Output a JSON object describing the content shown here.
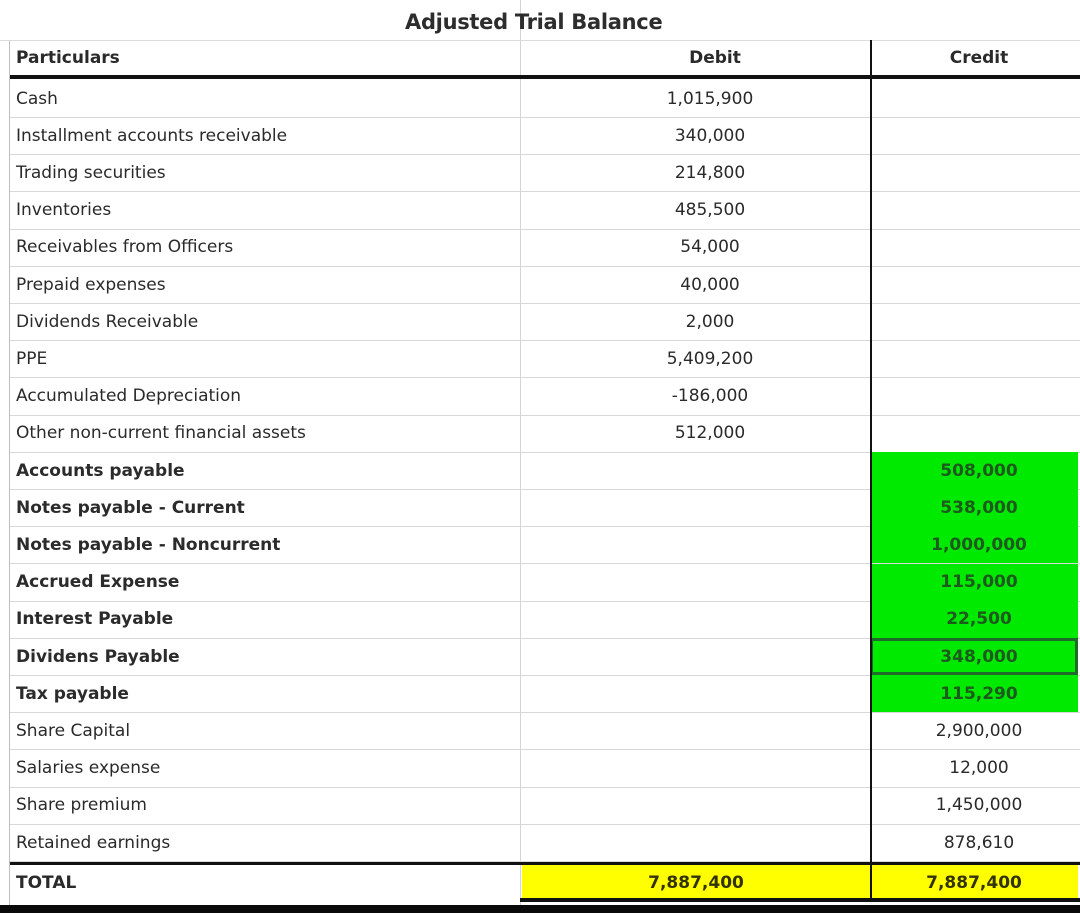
{
  "title": "Adjusted Trial Balance",
  "columns": {
    "particulars": "Particulars",
    "debit": "Debit",
    "credit": "Credit"
  },
  "rows": [
    {
      "particulars": "Cash",
      "debit": "1,015,900",
      "credit": "",
      "bold": false,
      "highlight": ""
    },
    {
      "particulars": "Installment accounts receivable",
      "debit": "340,000",
      "credit": "",
      "bold": false,
      "highlight": ""
    },
    {
      "particulars": "Trading securities",
      "debit": "214,800",
      "credit": "",
      "bold": false,
      "highlight": ""
    },
    {
      "particulars": "Inventories",
      "debit": "485,500",
      "credit": "",
      "bold": false,
      "highlight": ""
    },
    {
      "particulars": "Receivables from Officers",
      "debit": "54,000",
      "credit": "",
      "bold": false,
      "highlight": ""
    },
    {
      "particulars": "Prepaid expenses",
      "debit": "40,000",
      "credit": "",
      "bold": false,
      "highlight": ""
    },
    {
      "particulars": "Dividends Receivable",
      "debit": "2,000",
      "credit": "",
      "bold": false,
      "highlight": ""
    },
    {
      "particulars": "PPE",
      "debit": "5,409,200",
      "credit": "",
      "bold": false,
      "highlight": ""
    },
    {
      "particulars": "Accumulated Depreciation",
      "debit": "-186,000",
      "credit": "",
      "bold": false,
      "highlight": ""
    },
    {
      "particulars": "Other non-current financial assets",
      "debit": "512,000",
      "credit": "",
      "bold": false,
      "highlight": ""
    },
    {
      "particulars": "Accounts payable",
      "debit": "",
      "credit": "508,000",
      "bold": true,
      "highlight": "green"
    },
    {
      "particulars": "Notes payable - Current",
      "debit": "",
      "credit": "538,000",
      "bold": true,
      "highlight": "green"
    },
    {
      "particulars": "Notes payable - Noncurrent",
      "debit": "",
      "credit": "1,000,000",
      "bold": true,
      "highlight": "green"
    },
    {
      "particulars": "Accrued Expense",
      "debit": "",
      "credit": "115,000",
      "bold": true,
      "highlight": "green"
    },
    {
      "particulars": "Interest Payable",
      "debit": "",
      "credit": "22,500",
      "bold": true,
      "highlight": "green"
    },
    {
      "particulars": "Dividens Payable",
      "debit": "",
      "credit": "348,000",
      "bold": true,
      "highlight": "green-selected"
    },
    {
      "particulars": "Tax payable",
      "debit": "",
      "credit": "115,290",
      "bold": true,
      "highlight": "green"
    },
    {
      "particulars": "Share Capital",
      "debit": "",
      "credit": "2,900,000",
      "bold": false,
      "highlight": ""
    },
    {
      "particulars": "Salaries expense",
      "debit": "",
      "credit": "12,000",
      "bold": false,
      "highlight": ""
    },
    {
      "particulars": "Share premium",
      "debit": "",
      "credit": "1,450,000",
      "bold": false,
      "highlight": ""
    },
    {
      "particulars": "Retained earnings",
      "debit": "",
      "credit": "878,610",
      "bold": false,
      "highlight": ""
    }
  ],
  "total": {
    "label": "TOTAL",
    "debit": "7,887,400",
    "credit": "7,887,400"
  },
  "colors": {
    "green_highlight": "#00ea00",
    "total_highlight": "#ffff00",
    "border": "#111111"
  }
}
